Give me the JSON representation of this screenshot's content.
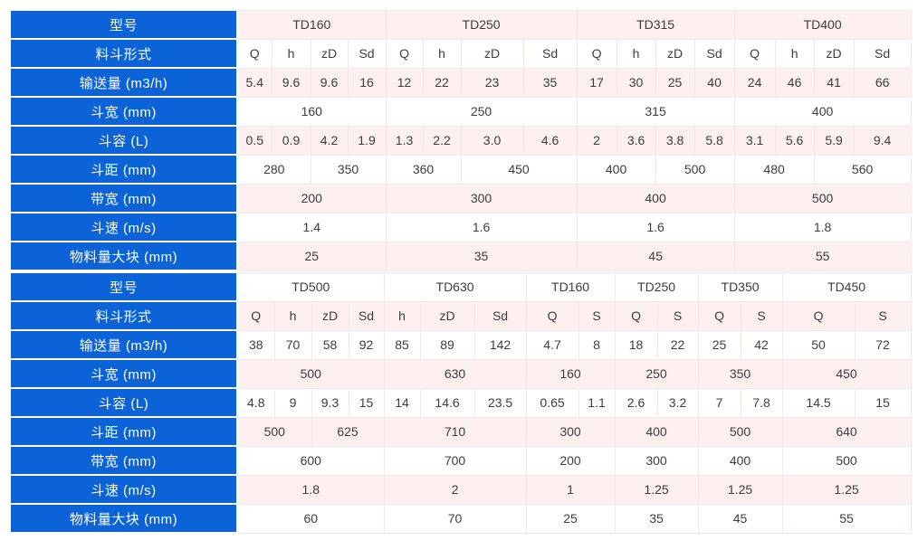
{
  "colors": {
    "label_bg": "#0c63d8",
    "label_text": "#ffffff",
    "row_white": "#ffffff",
    "row_pink": "#fdf0ee",
    "grid_line": "#f1e7e4",
    "data_text": "#3d3d3d"
  },
  "tables": {
    "block1": {
      "rows": [
        {
          "label": "型号",
          "cells": [
            {
              "t": "TD160",
              "s": 4
            },
            {
              "t": "TD250",
              "s": 4
            },
            {
              "t": "TD315",
              "s": 4
            },
            {
              "t": "TD400",
              "s": 4
            }
          ]
        },
        {
          "label": "料斗形式",
          "cells": [
            "Q",
            "h",
            "zD",
            "Sd",
            "Q",
            "h",
            "zD",
            "Sd",
            "Q",
            "h",
            "zD",
            "Sd",
            "Q",
            "h",
            "zD",
            "Sd"
          ]
        },
        {
          "label": "输送量 (m3/h)",
          "cells": [
            "5.4",
            "9.6",
            "9.6",
            "16",
            "12",
            "22",
            "23",
            "35",
            "17",
            "30",
            "25",
            "40",
            "24",
            "46",
            "41",
            "66"
          ]
        },
        {
          "label": "斗宽 (mm)",
          "cells": [
            {
              "t": "160",
              "s": 4
            },
            {
              "t": "250",
              "s": 4
            },
            {
              "t": "315",
              "s": 4
            },
            {
              "t": "400",
              "s": 4
            }
          ]
        },
        {
          "label": "斗容 (L)",
          "cells": [
            "0.5",
            "0.9",
            "4.2",
            "1.9",
            "1.3",
            "2.2",
            "3.0",
            "4.6",
            "2",
            "3.6",
            "3.8",
            "5.8",
            "3.1",
            "5.6",
            "5.9",
            "9.4"
          ]
        },
        {
          "label": "斗距 (mm)",
          "cells": [
            {
              "t": "280",
              "s": 2
            },
            {
              "t": "350",
              "s": 2
            },
            {
              "t": "360",
              "s": 2
            },
            {
              "t": "450",
              "s": 2
            },
            {
              "t": "400",
              "s": 2
            },
            {
              "t": "500",
              "s": 2
            },
            {
              "t": "480",
              "s": 2
            },
            {
              "t": "560",
              "s": 2
            }
          ]
        },
        {
          "label": "带宽 (mm)",
          "cells": [
            {
              "t": "200",
              "s": 4
            },
            {
              "t": "300",
              "s": 4
            },
            {
              "t": "400",
              "s": 4
            },
            {
              "t": "500",
              "s": 4
            }
          ]
        },
        {
          "label": "斗速 (m/s)",
          "cells": [
            {
              "t": "1.4",
              "s": 4
            },
            {
              "t": "1.6",
              "s": 4
            },
            {
              "t": "1.6",
              "s": 4
            },
            {
              "t": "1.8",
              "s": 4
            }
          ]
        },
        {
          "label": "物料量大块 (mm)",
          "cells": [
            {
              "t": "25",
              "s": 4
            },
            {
              "t": "35",
              "s": 4
            },
            {
              "t": "45",
              "s": 4
            },
            {
              "t": "55",
              "s": 4
            }
          ]
        }
      ]
    },
    "block2": {
      "rows": [
        {
          "label": "型号",
          "cells": [
            {
              "t": "TD500",
              "s": 4
            },
            {
              "t": "TD630",
              "s": 3
            },
            {
              "t": "TD160",
              "s": 2
            },
            {
              "t": "TD250",
              "s": 2
            },
            {
              "t": "TD350",
              "s": 2
            },
            {
              "t": "TD450",
              "s": 2
            }
          ]
        },
        {
          "label": "料斗形式",
          "cells": [
            "Q",
            "h",
            "zD",
            "Sd",
            "h",
            "zD",
            "Sd",
            "Q",
            "S",
            "Q",
            "S",
            "Q",
            "S",
            "Q",
            "S"
          ]
        },
        {
          "label": "输送量 (m3/h)",
          "cells": [
            "38",
            "70",
            "58",
            "92",
            "85",
            "89",
            "142",
            "4.7",
            "8",
            "18",
            "22",
            "25",
            "42",
            "50",
            "72"
          ]
        },
        {
          "label": "斗宽 (mm)",
          "cells": [
            {
              "t": "500",
              "s": 4
            },
            {
              "t": "630",
              "s": 3
            },
            {
              "t": "160",
              "s": 2
            },
            {
              "t": "250",
              "s": 2
            },
            {
              "t": "350",
              "s": 2
            },
            {
              "t": "450",
              "s": 2
            }
          ]
        },
        {
          "label": "斗容 (L)",
          "cells": [
            "4.8",
            "9",
            "9.3",
            "15",
            "14",
            "14.6",
            "23.5",
            "0.65",
            "1.1",
            "2.6",
            "3.2",
            "7",
            "7.8",
            "14.5",
            "15"
          ]
        },
        {
          "label": "斗距 (mm)",
          "cells": [
            {
              "t": "500",
              "s": 2
            },
            {
              "t": "625",
              "s": 2
            },
            {
              "t": "710",
              "s": 3
            },
            {
              "t": "300",
              "s": 2
            },
            {
              "t": "400",
              "s": 2
            },
            {
              "t": "500",
              "s": 2
            },
            {
              "t": "640",
              "s": 2
            }
          ]
        },
        {
          "label": "带宽 (mm)",
          "cells": [
            {
              "t": "600",
              "s": 4
            },
            {
              "t": "700",
              "s": 3
            },
            {
              "t": "200",
              "s": 2
            },
            {
              "t": "300",
              "s": 2
            },
            {
              "t": "400",
              "s": 2
            },
            {
              "t": "500",
              "s": 2
            }
          ]
        },
        {
          "label": "斗速 (m/s)",
          "cells": [
            {
              "t": "1.8",
              "s": 4
            },
            {
              "t": "2",
              "s": 3
            },
            {
              "t": "1",
              "s": 2
            },
            {
              "t": "1.25",
              "s": 2
            },
            {
              "t": "1.25",
              "s": 2
            },
            {
              "t": "1.25",
              "s": 2
            }
          ]
        },
        {
          "label": "物料量大块 (mm)",
          "cells": [
            {
              "t": "60",
              "s": 4
            },
            {
              "t": "70",
              "s": 3
            },
            {
              "t": "25",
              "s": 2
            },
            {
              "t": "35",
              "s": 2
            },
            {
              "t": "45",
              "s": 2
            },
            {
              "t": "55",
              "s": 2
            }
          ]
        }
      ]
    }
  }
}
